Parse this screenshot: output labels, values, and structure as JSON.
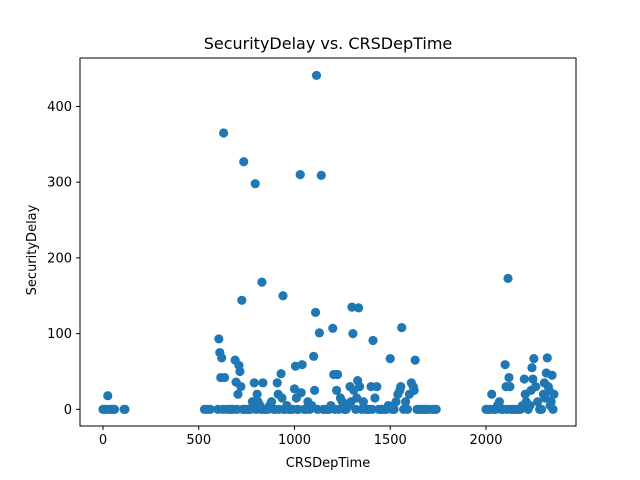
{
  "chart_data": {
    "type": "scatter",
    "title": "SecurityDelay vs. CRSDepTime",
    "xlabel": "CRSDepTime",
    "ylabel": "SecurityDelay",
    "xlim": [
      -120,
      2470
    ],
    "ylim": [
      -22,
      464
    ],
    "xticks": [
      0,
      500,
      1000,
      1500,
      2000
    ],
    "yticks": [
      0,
      100,
      200,
      300,
      400
    ],
    "grid": false,
    "marker_color": "#1f77b4",
    "points": [
      [
        0,
        0
      ],
      [
        10,
        0
      ],
      [
        20,
        0
      ],
      [
        25,
        18
      ],
      [
        35,
        0
      ],
      [
        45,
        0
      ],
      [
        55,
        0
      ],
      [
        60,
        0
      ],
      [
        110,
        0
      ],
      [
        115,
        0
      ],
      [
        530,
        0
      ],
      [
        545,
        0
      ],
      [
        560,
        0
      ],
      [
        600,
        0
      ],
      [
        605,
        93
      ],
      [
        610,
        75
      ],
      [
        615,
        42
      ],
      [
        620,
        68
      ],
      [
        625,
        0
      ],
      [
        630,
        365
      ],
      [
        635,
        42
      ],
      [
        645,
        0
      ],
      [
        660,
        0
      ],
      [
        670,
        0
      ],
      [
        680,
        0
      ],
      [
        690,
        65
      ],
      [
        695,
        36
      ],
      [
        700,
        0
      ],
      [
        705,
        20
      ],
      [
        710,
        58
      ],
      [
        715,
        50
      ],
      [
        720,
        30
      ],
      [
        725,
        144
      ],
      [
        730,
        0
      ],
      [
        735,
        327
      ],
      [
        740,
        0
      ],
      [
        750,
        0
      ],
      [
        760,
        0
      ],
      [
        770,
        0
      ],
      [
        780,
        10
      ],
      [
        790,
        35
      ],
      [
        795,
        298
      ],
      [
        800,
        0
      ],
      [
        805,
        20
      ],
      [
        810,
        10
      ],
      [
        820,
        5
      ],
      [
        825,
        0
      ],
      [
        830,
        168
      ],
      [
        835,
        35
      ],
      [
        840,
        0
      ],
      [
        850,
        0
      ],
      [
        860,
        0
      ],
      [
        870,
        5
      ],
      [
        880,
        10
      ],
      [
        890,
        0
      ],
      [
        900,
        0
      ],
      [
        910,
        35
      ],
      [
        915,
        20
      ],
      [
        920,
        0
      ],
      [
        930,
        47
      ],
      [
        935,
        15
      ],
      [
        940,
        150
      ],
      [
        945,
        0
      ],
      [
        950,
        0
      ],
      [
        960,
        5
      ],
      [
        970,
        0
      ],
      [
        980,
        0
      ],
      [
        990,
        0
      ],
      [
        1000,
        27
      ],
      [
        1005,
        57
      ],
      [
        1010,
        15
      ],
      [
        1015,
        0
      ],
      [
        1020,
        0
      ],
      [
        1030,
        310
      ],
      [
        1035,
        22
      ],
      [
        1040,
        59
      ],
      [
        1050,
        0
      ],
      [
        1060,
        0
      ],
      [
        1070,
        10
      ],
      [
        1080,
        0
      ],
      [
        1090,
        5
      ],
      [
        1100,
        70
      ],
      [
        1105,
        25
      ],
      [
        1110,
        128
      ],
      [
        1115,
        441
      ],
      [
        1120,
        0
      ],
      [
        1130,
        101
      ],
      [
        1140,
        309
      ],
      [
        1150,
        0
      ],
      [
        1160,
        0
      ],
      [
        1170,
        0
      ],
      [
        1180,
        0
      ],
      [
        1190,
        5
      ],
      [
        1200,
        107
      ],
      [
        1205,
        46
      ],
      [
        1210,
        0
      ],
      [
        1220,
        25
      ],
      [
        1225,
        46
      ],
      [
        1230,
        0
      ],
      [
        1240,
        15
      ],
      [
        1250,
        10
      ],
      [
        1260,
        0
      ],
      [
        1270,
        0
      ],
      [
        1280,
        5
      ],
      [
        1290,
        30
      ],
      [
        1295,
        10
      ],
      [
        1300,
        135
      ],
      [
        1305,
        100
      ],
      [
        1310,
        25
      ],
      [
        1320,
        0
      ],
      [
        1325,
        15
      ],
      [
        1330,
        38
      ],
      [
        1335,
        134
      ],
      [
        1340,
        30
      ],
      [
        1350,
        0
      ],
      [
        1360,
        10
      ],
      [
        1370,
        0
      ],
      [
        1380,
        0
      ],
      [
        1390,
        0
      ],
      [
        1400,
        30
      ],
      [
        1405,
        0
      ],
      [
        1410,
        91
      ],
      [
        1420,
        15
      ],
      [
        1430,
        30
      ],
      [
        1440,
        0
      ],
      [
        1450,
        0
      ],
      [
        1460,
        0
      ],
      [
        1470,
        0
      ],
      [
        1480,
        0
      ],
      [
        1490,
        5
      ],
      [
        1500,
        67
      ],
      [
        1510,
        0
      ],
      [
        1520,
        0
      ],
      [
        1530,
        10
      ],
      [
        1540,
        20
      ],
      [
        1550,
        25
      ],
      [
        1555,
        30
      ],
      [
        1560,
        108
      ],
      [
        1570,
        0
      ],
      [
        1580,
        10
      ],
      [
        1590,
        0
      ],
      [
        1600,
        20
      ],
      [
        1610,
        35
      ],
      [
        1620,
        30
      ],
      [
        1625,
        25
      ],
      [
        1630,
        65
      ],
      [
        1640,
        0
      ],
      [
        1650,
        0
      ],
      [
        1660,
        0
      ],
      [
        1670,
        0
      ],
      [
        1680,
        0
      ],
      [
        1690,
        0
      ],
      [
        1700,
        0
      ],
      [
        1720,
        0
      ],
      [
        1730,
        0
      ],
      [
        1740,
        0
      ],
      [
        2000,
        0
      ],
      [
        2010,
        0
      ],
      [
        2020,
        0
      ],
      [
        2030,
        20
      ],
      [
        2040,
        0
      ],
      [
        2050,
        0
      ],
      [
        2060,
        5
      ],
      [
        2070,
        10
      ],
      [
        2080,
        0
      ],
      [
        2090,
        0
      ],
      [
        2100,
        59
      ],
      [
        2105,
        30
      ],
      [
        2110,
        0
      ],
      [
        2115,
        173
      ],
      [
        2120,
        42
      ],
      [
        2125,
        30
      ],
      [
        2130,
        0
      ],
      [
        2140,
        0
      ],
      [
        2150,
        0
      ],
      [
        2160,
        0
      ],
      [
        2170,
        0
      ],
      [
        2180,
        0
      ],
      [
        2190,
        5
      ],
      [
        2200,
        40
      ],
      [
        2205,
        20
      ],
      [
        2210,
        10
      ],
      [
        2220,
        0
      ],
      [
        2230,
        5
      ],
      [
        2235,
        25
      ],
      [
        2240,
        55
      ],
      [
        2245,
        40
      ],
      [
        2250,
        67
      ],
      [
        2260,
        30
      ],
      [
        2270,
        10
      ],
      [
        2280,
        0
      ],
      [
        2290,
        0
      ],
      [
        2300,
        20
      ],
      [
        2305,
        35
      ],
      [
        2310,
        15
      ],
      [
        2315,
        48
      ],
      [
        2320,
        68
      ],
      [
        2325,
        30
      ],
      [
        2330,
        25
      ],
      [
        2335,
        5
      ],
      [
        2340,
        10
      ],
      [
        2345,
        45
      ],
      [
        2350,
        0
      ],
      [
        2355,
        20
      ]
    ]
  }
}
